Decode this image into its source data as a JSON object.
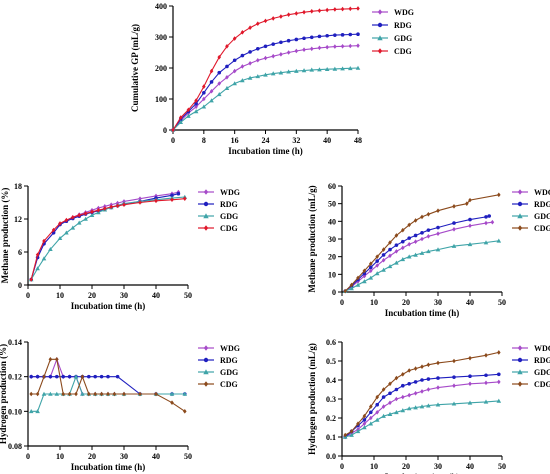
{
  "colors": {
    "WDG": "#a64ac9",
    "RDG": "#1f1fbf",
    "GDG": "#3fa4a8",
    "CDG": "#e0182b",
    "CDG_brown": "#8b4a1c"
  },
  "chart_data": [
    {
      "id": "gp",
      "type": "line",
      "xlabel": "Incubation time (h)",
      "ylabel": "Cumulative GP (mL/g)",
      "xlim": [
        0,
        48
      ],
      "ylim": [
        0,
        400
      ],
      "xticks": [
        0,
        8,
        16,
        24,
        32,
        40,
        48
      ],
      "yticks": [
        0,
        100,
        200,
        300,
        400
      ],
      "legend_position": "right-inside",
      "series": [
        {
          "name": "WDG",
          "color_key": "WDG",
          "marker": "diamond",
          "x": [
            0,
            2,
            4,
            6,
            8,
            10,
            12,
            14,
            16,
            18,
            20,
            22,
            24,
            26,
            28,
            30,
            32,
            34,
            36,
            38,
            40,
            42,
            44,
            46,
            48
          ],
          "y": [
            0,
            30,
            55,
            75,
            100,
            125,
            150,
            170,
            190,
            205,
            215,
            225,
            232,
            238,
            244,
            250,
            255,
            259,
            262,
            265,
            267,
            269,
            270,
            271,
            272
          ]
        },
        {
          "name": "RDG",
          "color_key": "RDG",
          "marker": "circle",
          "x": [
            0,
            2,
            4,
            6,
            8,
            10,
            12,
            14,
            16,
            18,
            20,
            22,
            24,
            26,
            28,
            30,
            32,
            34,
            36,
            38,
            40,
            42,
            44,
            46,
            48
          ],
          "y": [
            0,
            35,
            60,
            85,
            120,
            155,
            185,
            205,
            225,
            240,
            252,
            262,
            270,
            277,
            283,
            288,
            292,
            296,
            299,
            302,
            304,
            306,
            307,
            308,
            309
          ]
        },
        {
          "name": "GDG",
          "color_key": "GDG",
          "marker": "triangle",
          "x": [
            0,
            2,
            4,
            6,
            8,
            10,
            12,
            14,
            16,
            18,
            20,
            22,
            24,
            26,
            28,
            30,
            32,
            34,
            36,
            38,
            40,
            42,
            44,
            46,
            48
          ],
          "y": [
            0,
            25,
            45,
            60,
            75,
            95,
            115,
            135,
            150,
            160,
            168,
            173,
            178,
            182,
            185,
            188,
            190,
            192,
            194,
            195,
            196,
            197,
            198,
            199,
            200
          ]
        },
        {
          "name": "CDG",
          "color_key": "CDG",
          "marker": "diamond",
          "x": [
            0,
            2,
            4,
            6,
            8,
            10,
            12,
            14,
            16,
            18,
            20,
            22,
            24,
            26,
            28,
            30,
            32,
            34,
            36,
            38,
            40,
            42,
            44,
            46,
            48
          ],
          "y": [
            0,
            40,
            65,
            95,
            140,
            190,
            235,
            270,
            295,
            315,
            330,
            343,
            352,
            360,
            366,
            372,
            376,
            380,
            383,
            385,
            387,
            389,
            390,
            391,
            392
          ]
        }
      ]
    },
    {
      "id": "methane_pct",
      "type": "line",
      "xlabel": "Incubation time (h)",
      "ylabel": "Methane production (%)",
      "xlim": [
        0,
        50
      ],
      "ylim": [
        0,
        18
      ],
      "xticks": [
        0,
        10,
        20,
        30,
        40,
        50
      ],
      "yticks": [
        0,
        6,
        12,
        18
      ],
      "legend_position": "outside-right",
      "series": [
        {
          "name": "WDG",
          "color_key": "WDG",
          "marker": "diamond",
          "x": [
            1,
            3,
            5,
            8,
            10,
            12,
            14,
            16,
            18,
            20,
            22,
            24,
            26,
            28,
            30,
            35,
            40,
            45,
            47
          ],
          "y": [
            1,
            5,
            7.5,
            9.5,
            11,
            11.7,
            12.3,
            12.8,
            13.2,
            13.6,
            14,
            14.3,
            14.6,
            14.9,
            15.2,
            15.7,
            16.2,
            16.6,
            16.9
          ]
        },
        {
          "name": "RDG",
          "color_key": "RDG",
          "marker": "circle",
          "x": [
            1,
            3,
            5,
            8,
            10,
            12,
            14,
            16,
            18,
            20,
            22,
            24,
            26,
            28,
            30,
            35,
            40,
            45,
            47
          ],
          "y": [
            1,
            5,
            7.5,
            9.5,
            11,
            11.6,
            12.1,
            12.5,
            12.9,
            13.2,
            13.5,
            13.8,
            14.1,
            14.4,
            14.7,
            15.2,
            15.8,
            16.3,
            16.6
          ]
        },
        {
          "name": "GDG",
          "color_key": "GDG",
          "marker": "triangle",
          "x": [
            1,
            3,
            5,
            7,
            10,
            12,
            14,
            16,
            18,
            20,
            22,
            24,
            26,
            28,
            30,
            35,
            40,
            45,
            49
          ],
          "y": [
            1,
            3,
            4.8,
            6.5,
            8.5,
            9.5,
            10.4,
            11.3,
            12,
            12.7,
            13.2,
            13.7,
            14.1,
            14.5,
            14.8,
            15.2,
            15.5,
            15.8,
            16
          ]
        },
        {
          "name": "CDG",
          "color_key": "CDG",
          "marker": "diamond",
          "x": [
            1,
            3,
            5,
            8,
            10,
            12,
            14,
            16,
            18,
            20,
            22,
            24,
            26,
            28,
            30,
            35,
            40,
            45,
            49
          ],
          "y": [
            1,
            5.5,
            8,
            10,
            11.2,
            11.8,
            12.3,
            12.7,
            13,
            13.3,
            13.6,
            13.9,
            14.2,
            14.4,
            14.6,
            15,
            15.3,
            15.5,
            15.7
          ]
        }
      ]
    },
    {
      "id": "methane_ml",
      "type": "line",
      "xlabel": "Incubation time (h)",
      "ylabel": "Methane production (mL/g)",
      "xlim": [
        0,
        50
      ],
      "ylim": [
        0,
        60
      ],
      "xticks": [
        0,
        10,
        20,
        30,
        40,
        50
      ],
      "yticks": [
        0,
        10,
        20,
        30,
        40,
        50,
        60
      ],
      "legend_position": "outside-right",
      "series": [
        {
          "name": "WDG",
          "color_key": "WDG",
          "marker": "diamond",
          "x": [
            1,
            3,
            5,
            7,
            9,
            11,
            13,
            15,
            17,
            19,
            21,
            23,
            25,
            27,
            30,
            35,
            40,
            45,
            47
          ],
          "y": [
            0.5,
            3,
            6,
            9,
            12,
            15,
            18,
            20.5,
            23,
            25,
            27,
            28.5,
            30,
            31.5,
            33,
            35.5,
            37.5,
            39,
            39.5
          ]
        },
        {
          "name": "RDG",
          "color_key": "RDG",
          "marker": "circle",
          "x": [
            1,
            3,
            5,
            7,
            9,
            11,
            13,
            15,
            17,
            19,
            21,
            23,
            25,
            27,
            30,
            35,
            40,
            45,
            46
          ],
          "y": [
            0.5,
            3.5,
            7,
            10.5,
            14,
            17.5,
            21,
            24,
            26.5,
            28.5,
            30.5,
            32,
            33.5,
            35,
            36.5,
            39,
            41,
            42.5,
            43
          ]
        },
        {
          "name": "GDG",
          "color_key": "GDG",
          "marker": "triangle",
          "x": [
            1,
            3,
            5,
            7,
            9,
            11,
            13,
            15,
            17,
            19,
            21,
            23,
            25,
            27,
            30,
            35,
            40,
            45,
            49
          ],
          "y": [
            0.5,
            2,
            4,
            6,
            8,
            10.5,
            12.5,
            14.5,
            16.5,
            18.5,
            20,
            21,
            22,
            23,
            24,
            26,
            27,
            28,
            29
          ]
        },
        {
          "name": "CDG",
          "color_key": "CDG_brown",
          "marker": "diamond",
          "x": [
            1,
            3,
            5,
            7,
            9,
            11,
            13,
            15,
            17,
            19,
            21,
            23,
            25,
            27,
            30,
            35,
            39,
            40,
            49
          ],
          "y": [
            0.5,
            4,
            8,
            12,
            16,
            20,
            24,
            28,
            32,
            35,
            38,
            40.5,
            42.5,
            44,
            46,
            48.5,
            50,
            52,
            55
          ]
        }
      ]
    },
    {
      "id": "hydrogen_pct",
      "type": "line",
      "xlabel": "Incubation time (h)",
      "ylabel": "Hydrogen production (%)",
      "xlim": [
        0,
        50
      ],
      "ylim": [
        0.08,
        0.14
      ],
      "xticks": [
        0,
        10,
        20,
        30,
        40,
        50
      ],
      "yticks": [
        0.08,
        0.1,
        0.12,
        0.14
      ],
      "legend_position": "outside-right",
      "series": [
        {
          "name": "WDG",
          "color_key": "WDG",
          "marker": "diamond",
          "x": [
            1,
            3,
            5,
            7,
            9,
            11,
            13,
            15,
            17,
            19,
            21,
            23,
            25,
            27,
            30,
            35,
            40,
            45
          ],
          "y": [
            0.12,
            0.12,
            0.12,
            0.12,
            0.13,
            0.12,
            0.12,
            0.12,
            0.11,
            0.11,
            0.11,
            0.11,
            0.11,
            0.11,
            0.11,
            0.11,
            0.11,
            0.11
          ]
        },
        {
          "name": "RDG",
          "color_key": "RDG",
          "marker": "circle",
          "x": [
            1,
            3,
            5,
            7,
            9,
            11,
            13,
            15,
            17,
            19,
            21,
            23,
            25,
            28,
            35,
            40,
            45,
            49
          ],
          "y": [
            0.12,
            0.12,
            0.12,
            0.12,
            0.12,
            0.12,
            0.12,
            0.12,
            0.12,
            0.12,
            0.12,
            0.12,
            0.12,
            0.12,
            0.11,
            0.11,
            0.11,
            0.11
          ]
        },
        {
          "name": "GDG",
          "color_key": "GDG",
          "marker": "triangle",
          "x": [
            1,
            3,
            5,
            7,
            9,
            11,
            13,
            15,
            17,
            19,
            21,
            23,
            25,
            27,
            30,
            35,
            40,
            45,
            49
          ],
          "y": [
            0.1,
            0.1,
            0.11,
            0.11,
            0.11,
            0.11,
            0.11,
            0.12,
            0.11,
            0.11,
            0.11,
            0.11,
            0.11,
            0.11,
            0.11,
            0.11,
            0.11,
            0.11,
            0.11
          ]
        },
        {
          "name": "CDG",
          "color_key": "CDG_brown",
          "marker": "diamond",
          "x": [
            1,
            3,
            5,
            7,
            9,
            11,
            13,
            15,
            17,
            19,
            21,
            23,
            25,
            27,
            30,
            35,
            40,
            45,
            49
          ],
          "y": [
            0.11,
            0.11,
            0.12,
            0.13,
            0.13,
            0.11,
            0.11,
            0.11,
            0.12,
            0.11,
            0.11,
            0.11,
            0.11,
            0.11,
            0.11,
            0.11,
            0.11,
            0.105,
            0.1
          ]
        }
      ]
    },
    {
      "id": "hydrogen_ml",
      "type": "line",
      "xlabel": "Incubation time (h)",
      "ylabel": "Hydrogen production (mL/g)",
      "xlim": [
        0,
        50
      ],
      "ylim": [
        0.0,
        0.6
      ],
      "xticks": [
        0,
        10,
        20,
        30,
        40,
        50
      ],
      "yticks": [
        0.0,
        0.1,
        0.2,
        0.3,
        0.4,
        0.5,
        0.6
      ],
      "legend_position": "outside-right",
      "series": [
        {
          "name": "WDG",
          "color_key": "WDG",
          "marker": "diamond",
          "x": [
            1,
            3,
            5,
            7,
            9,
            11,
            13,
            15,
            17,
            19,
            21,
            23,
            25,
            27,
            30,
            35,
            40,
            45,
            49
          ],
          "y": [
            0.1,
            0.12,
            0.14,
            0.17,
            0.2,
            0.23,
            0.26,
            0.28,
            0.3,
            0.31,
            0.32,
            0.33,
            0.34,
            0.35,
            0.36,
            0.37,
            0.38,
            0.385,
            0.39
          ]
        },
        {
          "name": "RDG",
          "color_key": "RDG",
          "marker": "circle",
          "x": [
            1,
            3,
            5,
            7,
            9,
            11,
            13,
            15,
            17,
            19,
            21,
            23,
            25,
            27,
            30,
            35,
            40,
            45,
            49
          ],
          "y": [
            0.1,
            0.13,
            0.16,
            0.19,
            0.23,
            0.27,
            0.31,
            0.33,
            0.35,
            0.37,
            0.38,
            0.39,
            0.4,
            0.405,
            0.41,
            0.415,
            0.42,
            0.425,
            0.43
          ]
        },
        {
          "name": "GDG",
          "color_key": "GDG",
          "marker": "triangle",
          "x": [
            1,
            3,
            5,
            7,
            9,
            11,
            13,
            15,
            17,
            19,
            21,
            23,
            25,
            27,
            30,
            35,
            40,
            45,
            49
          ],
          "y": [
            0.1,
            0.11,
            0.13,
            0.15,
            0.17,
            0.19,
            0.21,
            0.22,
            0.23,
            0.24,
            0.25,
            0.255,
            0.26,
            0.265,
            0.27,
            0.275,
            0.28,
            0.285,
            0.29
          ]
        },
        {
          "name": "CDG",
          "color_key": "CDG_brown",
          "marker": "diamond",
          "x": [
            1,
            3,
            5,
            7,
            9,
            11,
            13,
            15,
            17,
            19,
            21,
            23,
            25,
            27,
            30,
            35,
            40,
            45,
            49
          ],
          "y": [
            0.11,
            0.13,
            0.17,
            0.21,
            0.26,
            0.31,
            0.35,
            0.38,
            0.41,
            0.43,
            0.45,
            0.46,
            0.47,
            0.48,
            0.49,
            0.5,
            0.515,
            0.53,
            0.545
          ]
        }
      ]
    }
  ]
}
